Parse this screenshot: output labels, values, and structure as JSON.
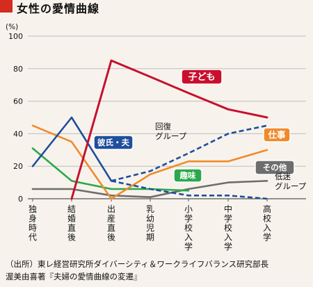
{
  "title": "女性の愛情曲線",
  "source": {
    "line1": "（出所）東レ経営研究所ダイバーシティ＆ワークライフバランス研究部長",
    "line2": "渥美由喜著『夫婦の愛情曲線の変遷』"
  },
  "colors": {
    "child": "#c8102e",
    "partner": "#1f4e9c",
    "recovery": "#1f4e9c",
    "work": "#f08a2c",
    "hobby": "#2aa84a",
    "other": "#6d6d6d",
    "slump": "#1f4e9c",
    "background": "#f7f3ec",
    "grid": "#bdbdbd"
  },
  "chart_data": {
    "type": "line",
    "y_unit": "(%)",
    "ylim": [
      0,
      100
    ],
    "yticks": [
      0,
      20,
      40,
      60,
      80,
      100
    ],
    "categories": [
      "独身時代",
      "結婚直後",
      "出産直後",
      "乳幼児期",
      "小学校入学",
      "中学校入学",
      "高校入学"
    ],
    "grid": true,
    "series": [
      {
        "key": "child",
        "name": "子ども",
        "style": "solid",
        "values": [
          null,
          0,
          85,
          75,
          65,
          55,
          50
        ]
      },
      {
        "key": "partner",
        "name": "彼氏・夫",
        "style": "solid",
        "values": [
          20,
          50,
          11,
          null,
          null,
          null,
          null
        ]
      },
      {
        "key": "recovery",
        "name": "回復グループ",
        "style": "dashed",
        "values": [
          null,
          null,
          11,
          17,
          28,
          40,
          45
        ]
      },
      {
        "key": "work",
        "name": "仕事",
        "style": "solid",
        "values": [
          45,
          35,
          0,
          15,
          23,
          23,
          30
        ]
      },
      {
        "key": "hobby",
        "name": "趣味",
        "style": "solid",
        "values": [
          31,
          11,
          6,
          6,
          5,
          null,
          null
        ]
      },
      {
        "key": "other",
        "name": "その他",
        "style": "solid",
        "values": [
          6,
          6,
          2,
          1,
          6,
          10,
          11
        ]
      },
      {
        "key": "slump",
        "name": "低迷グループ",
        "style": "dashed",
        "values": [
          null,
          null,
          11,
          6,
          2,
          2,
          0
        ]
      }
    ],
    "labels": {
      "child": "子ども",
      "partner": "彼氏・夫",
      "recovery": [
        "回復",
        "グループ"
      ],
      "work": "仕事",
      "hobby": "趣味",
      "other": "その他",
      "slump": [
        "低迷",
        "グループ"
      ]
    }
  }
}
